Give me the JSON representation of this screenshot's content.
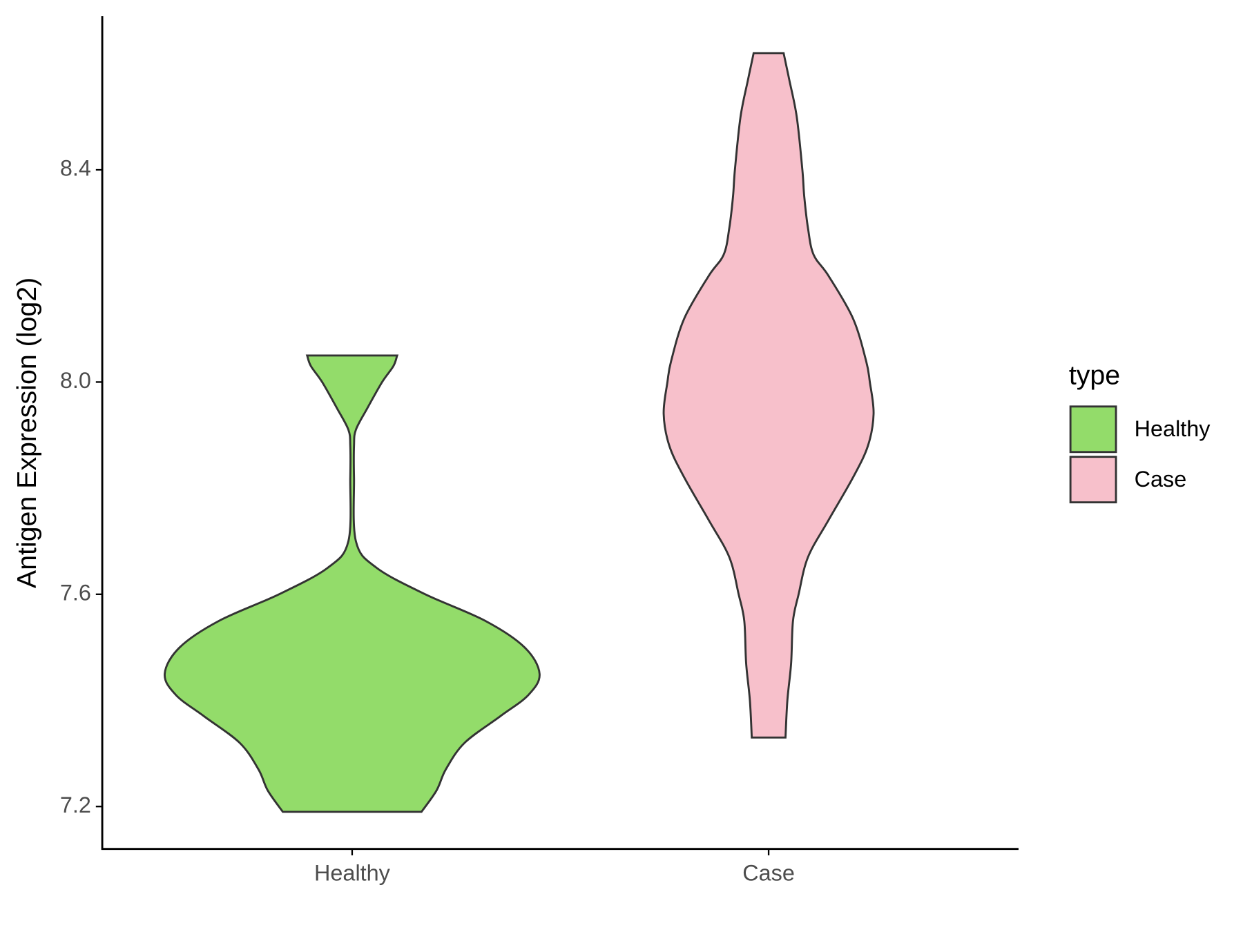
{
  "chart_data": {
    "type": "violin",
    "y_label": "Antigen Expression (log2)",
    "categories": [
      "Healthy",
      "Case"
    ],
    "ylim": [
      7.12,
      8.69
    ],
    "yticks": [
      7.2,
      7.6,
      {
        "value": 8,
        "label": "8.0"
      },
      8.4
    ],
    "legend_title": "type",
    "legend_position": "right",
    "series": [
      {
        "name": "Healthy",
        "color": "#93dc6a",
        "y": [
          7.19,
          7.23,
          7.27,
          7.32,
          7.37,
          7.41,
          7.45,
          7.5,
          7.55,
          7.6,
          7.65,
          7.7,
          7.82,
          7.88,
          7.91,
          7.95,
          8.0,
          8.03,
          8.05
        ],
        "density": [
          0.37,
          0.45,
          0.5,
          0.6,
          0.79,
          0.94,
          1,
          0.92,
          0.71,
          0.39,
          0.13,
          0.02,
          0.01,
          0.01,
          0.02,
          0.08,
          0.16,
          0.22,
          0.24
        ]
      },
      {
        "name": "Case",
        "color": "#f7c0cb",
        "y": [
          7.33,
          7.4,
          7.47,
          7.55,
          7.6,
          7.67,
          7.74,
          7.82,
          7.88,
          7.94,
          8.0,
          8.04,
          8.12,
          8.2,
          8.24,
          8.29,
          8.35,
          8.4,
          8.5,
          8.57,
          8.62
        ],
        "density": [
          0.09,
          0.1,
          0.12,
          0.13,
          0.16,
          0.21,
          0.32,
          0.45,
          0.53,
          0.56,
          0.54,
          0.52,
          0.45,
          0.32,
          0.24,
          0.21,
          0.19,
          0.18,
          0.15,
          0.11,
          0.08
        ]
      }
    ]
  }
}
